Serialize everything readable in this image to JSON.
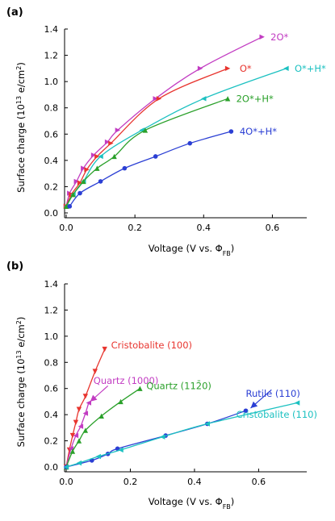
{
  "chart_data": [
    {
      "panel_label": "(a)",
      "type": "line",
      "xlabel": "Voltage (V vs. Φ",
      "xlabel_sub": "FB",
      "xlabel_end": ")",
      "ylabel": "Surface charge (10",
      "ylabel_sup": "13",
      "ylabel_end": " e/cm",
      "ylabel_sup2": "2",
      "ylabel_close": ")",
      "xlim": [
        0,
        0.7
      ],
      "ylim": [
        0,
        1.4
      ],
      "xticks": [
        "0.0",
        "0.2",
        "0.4",
        "0.6"
      ],
      "xtick_values": [
        0,
        0.2,
        0.4,
        0.6
      ],
      "yticks": [
        "0.0",
        "0.2",
        "0.4",
        "0.6",
        "0.8",
        "1.0",
        "1.2",
        "1.4"
      ],
      "ytick_values": [
        0,
        0.2,
        0.4,
        0.6,
        0.8,
        1.0,
        1.2,
        1.4
      ],
      "series": [
        {
          "name": "2O*",
          "color": "#c23cc2",
          "marker": "triangle-right",
          "x": [
            0,
            0.01,
            0.03,
            0.05,
            0.08,
            0.12,
            0.15,
            0.26,
            0.39,
            0.57
          ],
          "y": [
            0.05,
            0.15,
            0.24,
            0.34,
            0.44,
            0.54,
            0.63,
            0.87,
            1.1,
            1.34
          ],
          "label_x": 0.59,
          "label_y": 1.34
        },
        {
          "name": "O*",
          "color": "#e8352f",
          "marker": "triangle-right",
          "x": [
            0,
            0.015,
            0.04,
            0.06,
            0.09,
            0.13,
            0.27,
            0.47
          ],
          "y": [
            0.05,
            0.14,
            0.23,
            0.33,
            0.43,
            0.53,
            0.87,
            1.1
          ],
          "label_x": 0.5,
          "label_y": 1.1
        },
        {
          "name": "O*+H*",
          "color": "#1cc1c1",
          "marker": "triangle-left",
          "x": [
            0,
            0.02,
            0.05,
            0.1,
            0.22,
            0.4,
            0.64
          ],
          "y": [
            0.05,
            0.14,
            0.24,
            0.43,
            0.63,
            0.87,
            1.1
          ],
          "label_x": 0.66,
          "label_y": 1.1
        },
        {
          "name": "2O*+H*",
          "color": "#2aa02a",
          "marker": "triangle-up",
          "x": [
            0,
            0.02,
            0.05,
            0.09,
            0.14,
            0.23,
            0.47
          ],
          "y": [
            0.05,
            0.14,
            0.24,
            0.34,
            0.43,
            0.63,
            0.87
          ],
          "label_x": 0.49,
          "label_y": 0.87
        },
        {
          "name": "4O*+H*",
          "color": "#2b3fd4",
          "marker": "circle",
          "x": [
            0.01,
            0.04,
            0.1,
            0.17,
            0.26,
            0.36,
            0.48
          ],
          "y": [
            0.05,
            0.15,
            0.24,
            0.34,
            0.43,
            0.53,
            0.62
          ],
          "label_x": 0.5,
          "label_y": 0.62
        }
      ]
    },
    {
      "panel_label": "(b)",
      "type": "line",
      "xlabel": "Voltage (V vs. Φ",
      "xlabel_sub": "FB",
      "xlabel_end": ")",
      "ylabel": "Surface charge (10",
      "ylabel_sup": "13",
      "ylabel_end": " e/cm",
      "ylabel_sup2": "2",
      "ylabel_close": ")",
      "xlim": [
        0,
        0.75
      ],
      "ylim": [
        0,
        1.4
      ],
      "xticks": [
        "0.0",
        "0.2",
        "0.4",
        "0.6"
      ],
      "xtick_values": [
        0,
        0.2,
        0.4,
        0.6
      ],
      "yticks": [
        "0.0",
        "0.2",
        "0.4",
        "0.6",
        "0.8",
        "1.0",
        "1.2",
        "1.4"
      ],
      "ytick_values": [
        0,
        0.2,
        0.4,
        0.6,
        0.8,
        1.0,
        1.2,
        1.4
      ],
      "series": [
        {
          "name": "Cristobalite (100)",
          "color": "#e8352f",
          "marker": "triangle-down",
          "x": [
            0,
            0.01,
            0.02,
            0.03,
            0.04,
            0.06,
            0.09,
            0.12
          ],
          "y": [
            0.0,
            0.13,
            0.24,
            0.34,
            0.44,
            0.54,
            0.73,
            0.9
          ],
          "label_x": 0.135,
          "label_y": 0.93
        },
        {
          "name": "Quartz (1000)",
          "color": "#c23cc2",
          "marker": "triangle-left",
          "x": [
            0,
            0.015,
            0.03,
            0.045,
            0.06,
            0.07
          ],
          "y": [
            0.0,
            0.14,
            0.24,
            0.31,
            0.41,
            0.49
          ],
          "label_x": 0.13,
          "label_y": 0.65
        },
        {
          "name": "Quartz (11ƀ2̅0)",
          "display": "Quartz (112̄0)",
          "color": "#2aa02a",
          "marker": "triangle-up",
          "x": [
            0,
            0.02,
            0.04,
            0.06,
            0.11,
            0.17,
            0.23
          ],
          "y": [
            0.0,
            0.12,
            0.2,
            0.28,
            0.39,
            0.5,
            0.6
          ],
          "label_x": 0.245,
          "label_y": 0.62
        },
        {
          "name": "Rutile (110)",
          "color": "#2b3fd4",
          "marker": "circle",
          "x": [
            0,
            0.08,
            0.13,
            0.16,
            0.31,
            0.44,
            0.56
          ],
          "y": [
            0.0,
            0.05,
            0.1,
            0.14,
            0.24,
            0.33,
            0.43
          ],
          "label_x": 0.6,
          "label_y": 0.62
        },
        {
          "name": "Cristobalite (110)",
          "color": "#1cc1c1",
          "marker": "triangle-left",
          "x": [
            0,
            0.04,
            0.1,
            0.17,
            0.3,
            0.44,
            0.72
          ],
          "y": [
            0.0,
            0.03,
            0.08,
            0.13,
            0.23,
            0.33,
            0.49
          ],
          "label_x": 0.58,
          "label_y": 0.38
        }
      ],
      "arrows": [
        {
          "target": "Quartz (1000)",
          "from": [
            0.13,
            0.62
          ],
          "to": [
            0.075,
            0.5
          ]
        },
        {
          "target": "Rutile (110)",
          "from": [
            0.64,
            0.59
          ],
          "to": [
            0.575,
            0.45
          ]
        }
      ]
    }
  ]
}
